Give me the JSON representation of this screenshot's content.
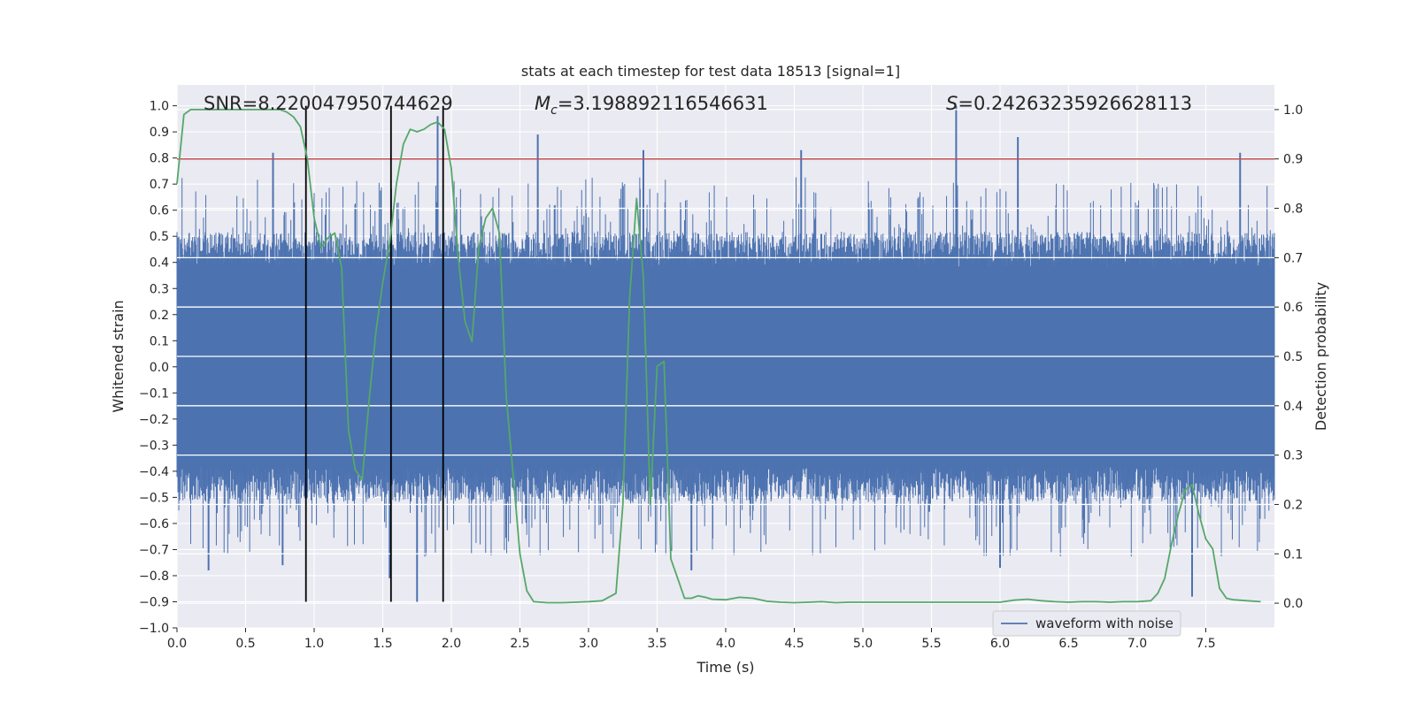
{
  "chart_data": {
    "type": "line",
    "title": "stats at each timestep for test data 18513 [signal=1]",
    "xlabel": "Time (s)",
    "ylabel": "Whitened strain",
    "y2label": "Detection probability",
    "xlim": [
      0,
      8
    ],
    "ylim": [
      -1.0,
      1.08
    ],
    "y2lim": [
      -0.05,
      1.05
    ],
    "x_ticks": [
      0.0,
      0.5,
      1.0,
      1.5,
      2.0,
      2.5,
      3.0,
      3.5,
      4.0,
      4.5,
      5.0,
      5.5,
      6.0,
      6.5,
      7.0,
      7.5
    ],
    "x_tick_labels": [
      "0.0",
      "0.5",
      "1.0",
      "1.5",
      "2.0",
      "2.5",
      "3.0",
      "3.5",
      "4.0",
      "4.5",
      "5.0",
      "5.5",
      "6.0",
      "6.5",
      "7.0",
      "7.5"
    ],
    "y_ticks": [
      1.0,
      0.9,
      0.8,
      0.7,
      0.6,
      0.5,
      0.4,
      0.3,
      0.2,
      0.1,
      0.0,
      -0.1,
      -0.2,
      -0.3,
      -0.4,
      -0.5,
      -0.6,
      -0.7,
      -0.8,
      -0.9,
      -1.0
    ],
    "y_tick_labels": [
      "1.0",
      "0.9",
      "0.8",
      "0.7",
      "0.6",
      "0.5",
      "0.4",
      "0.3",
      "0.2",
      "0.1",
      "0.0",
      "−0.1",
      "−0.2",
      "−0.3",
      "−0.4",
      "−0.5",
      "−0.6",
      "−0.7",
      "−0.8",
      "−0.9",
      "−1.0"
    ],
    "y2_ticks": [
      1.0,
      0.9,
      0.8,
      0.7,
      0.6,
      0.5,
      0.4,
      0.3,
      0.2,
      0.1,
      0.0
    ],
    "y2_tick_labels": [
      "1.0",
      "0.9",
      "0.8",
      "0.7",
      "0.6",
      "0.5",
      "0.4",
      "0.3",
      "0.2",
      "0.1",
      "0.0"
    ],
    "grid": true,
    "legend": {
      "position": "lower-right",
      "entries": [
        "waveform with noise"
      ]
    },
    "annotations": {
      "snr": "SNR=8.220047950744629",
      "mc_symbol": "M",
      "mc_subscript": "c",
      "mc_value": "=3.198892116546631",
      "s_symbol": "S",
      "s_value": "=0.24263235926628113"
    },
    "vertical_lines_x": [
      0.94,
      1.56,
      1.94
    ],
    "threshold_probability": 0.9,
    "series": [
      {
        "name": "waveform with noise",
        "axis": "left",
        "style": "noise band",
        "typical_amplitude": 0.45,
        "peak_spikes": [
          {
            "x": 0.7,
            "y": 0.82
          },
          {
            "x": 1.9,
            "y": 0.96
          },
          {
            "x": 2.63,
            "y": 0.89
          },
          {
            "x": 3.4,
            "y": 0.83
          },
          {
            "x": 4.55,
            "y": 0.83
          },
          {
            "x": 5.68,
            "y": 1.0
          },
          {
            "x": 6.13,
            "y": 0.88
          },
          {
            "x": 7.75,
            "y": 0.82
          }
        ],
        "trough_spikes": [
          {
            "x": 0.23,
            "y": -0.78
          },
          {
            "x": 0.77,
            "y": -0.76
          },
          {
            "x": 1.55,
            "y": -0.81
          },
          {
            "x": 1.75,
            "y": -0.9
          },
          {
            "x": 3.75,
            "y": -0.78
          },
          {
            "x": 6.0,
            "y": -0.77
          },
          {
            "x": 7.4,
            "y": -0.88
          }
        ]
      },
      {
        "name": "",
        "axis": "right",
        "color": "#55a868",
        "x": [
          0.0,
          0.05,
          0.1,
          0.2,
          0.3,
          0.4,
          0.5,
          0.6,
          0.7,
          0.75,
          0.8,
          0.85,
          0.9,
          0.95,
          1.0,
          1.05,
          1.1,
          1.15,
          1.2,
          1.25,
          1.3,
          1.35,
          1.4,
          1.45,
          1.5,
          1.55,
          1.6,
          1.65,
          1.7,
          1.75,
          1.8,
          1.85,
          1.9,
          1.95,
          2.0,
          2.05,
          2.1,
          2.15,
          2.2,
          2.25,
          2.3,
          2.35,
          2.4,
          2.45,
          2.5,
          2.55,
          2.6,
          2.7,
          2.8,
          2.9,
          3.0,
          3.1,
          3.2,
          3.25,
          3.3,
          3.35,
          3.4,
          3.45,
          3.5,
          3.55,
          3.6,
          3.65,
          3.7,
          3.75,
          3.8,
          3.85,
          3.9,
          4.0,
          4.1,
          4.2,
          4.3,
          4.4,
          4.5,
          4.6,
          4.7,
          4.8,
          4.9,
          5.0,
          5.2,
          5.4,
          5.6,
          5.8,
          6.0,
          6.1,
          6.2,
          6.3,
          6.4,
          6.5,
          6.6,
          6.7,
          6.8,
          6.9,
          7.0,
          7.1,
          7.15,
          7.2,
          7.25,
          7.3,
          7.35,
          7.4,
          7.45,
          7.5,
          7.55,
          7.6,
          7.65,
          7.7,
          7.8,
          7.9
        ],
        "values": [
          0.85,
          0.99,
          1.0,
          1.0,
          1.0,
          1.0,
          1.0,
          1.0,
          1.0,
          1.0,
          0.995,
          0.985,
          0.965,
          0.9,
          0.78,
          0.72,
          0.74,
          0.75,
          0.68,
          0.35,
          0.27,
          0.25,
          0.41,
          0.55,
          0.65,
          0.73,
          0.85,
          0.93,
          0.96,
          0.955,
          0.96,
          0.97,
          0.975,
          0.96,
          0.88,
          0.7,
          0.57,
          0.53,
          0.72,
          0.78,
          0.8,
          0.75,
          0.42,
          0.26,
          0.1,
          0.025,
          0.003,
          0.001,
          0.001,
          0.002,
          0.003,
          0.005,
          0.02,
          0.2,
          0.62,
          0.82,
          0.66,
          0.2,
          0.48,
          0.49,
          0.09,
          0.05,
          0.01,
          0.01,
          0.015,
          0.012,
          0.008,
          0.007,
          0.012,
          0.01,
          0.004,
          0.002,
          0.001,
          0.002,
          0.003,
          0.001,
          0.002,
          0.002,
          0.002,
          0.002,
          0.002,
          0.002,
          0.002,
          0.006,
          0.008,
          0.005,
          0.003,
          0.002,
          0.003,
          0.003,
          0.002,
          0.003,
          0.003,
          0.005,
          0.02,
          0.05,
          0.12,
          0.18,
          0.23,
          0.24,
          0.18,
          0.13,
          0.11,
          0.03,
          0.01,
          0.007,
          0.005,
          0.003
        ]
      }
    ]
  }
}
